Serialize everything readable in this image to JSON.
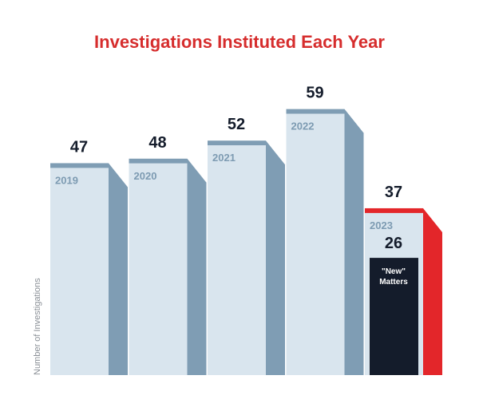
{
  "chart_data": {
    "type": "bar",
    "title": "Investigations Instituted Each Year",
    "ylabel": "Number of Investigations",
    "xlabel": "",
    "categories": [
      "2019",
      "2020",
      "2021",
      "2022",
      "2023"
    ],
    "values": [
      47,
      48,
      52,
      59,
      37
    ],
    "highlight_category": "2023",
    "sub_bar": {
      "category": "2023",
      "value": 26,
      "label_line1": "\"New\"",
      "label_line2": "Matters"
    },
    "ylim": [
      0,
      59
    ],
    "grid": false,
    "legend": "none"
  },
  "colors": {
    "title": "#d62d2d",
    "bar_face": "#d9e5ee",
    "bar_shadow": "#7f9db4",
    "bar_cap": "#7f9db4",
    "highlight": "#e3262a",
    "sub_bar": "#141c2b",
    "value_text": "#141c2b",
    "year_text": "#7d9bb2",
    "ylabel_text": "#8a8f96"
  }
}
